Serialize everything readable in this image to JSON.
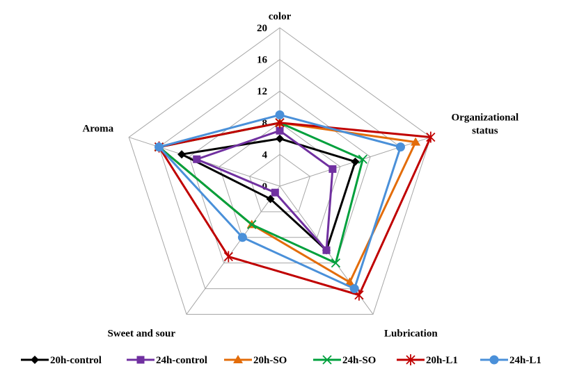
{
  "chart_data": {
    "type": "radar",
    "axes": [
      "color",
      "Organizational\nstatus",
      "Lubrication",
      "Sweet and sour",
      "Aroma"
    ],
    "rlim": [
      0,
      20
    ],
    "ticks": [
      0,
      4,
      8,
      12,
      16,
      20
    ],
    "grid": true,
    "legend_position": "bottom",
    "series": [
      {
        "name": "20h-control",
        "color": "#000000",
        "marker": "diamond",
        "values": [
          6,
          10,
          10,
          2,
          13
        ]
      },
      {
        "name": "24h-control",
        "color": "#7030A0",
        "marker": "square",
        "values": [
          7,
          7,
          10,
          1,
          11
        ]
      },
      {
        "name": "20h-SO",
        "color": "#E36C09",
        "marker": "triangle",
        "values": [
          8,
          18,
          15,
          6,
          16
        ]
      },
      {
        "name": "24h-SO",
        "color": "#00A03C",
        "marker": "x",
        "values": [
          8,
          11,
          12,
          6,
          16
        ]
      },
      {
        "name": "20h-L1",
        "color": "#C00000",
        "marker": "star",
        "values": [
          8,
          20,
          17,
          11,
          16
        ]
      },
      {
        "name": "24h-L1",
        "color": "#4A90D9",
        "marker": "circle",
        "values": [
          9,
          16,
          16,
          8,
          16
        ]
      }
    ]
  }
}
